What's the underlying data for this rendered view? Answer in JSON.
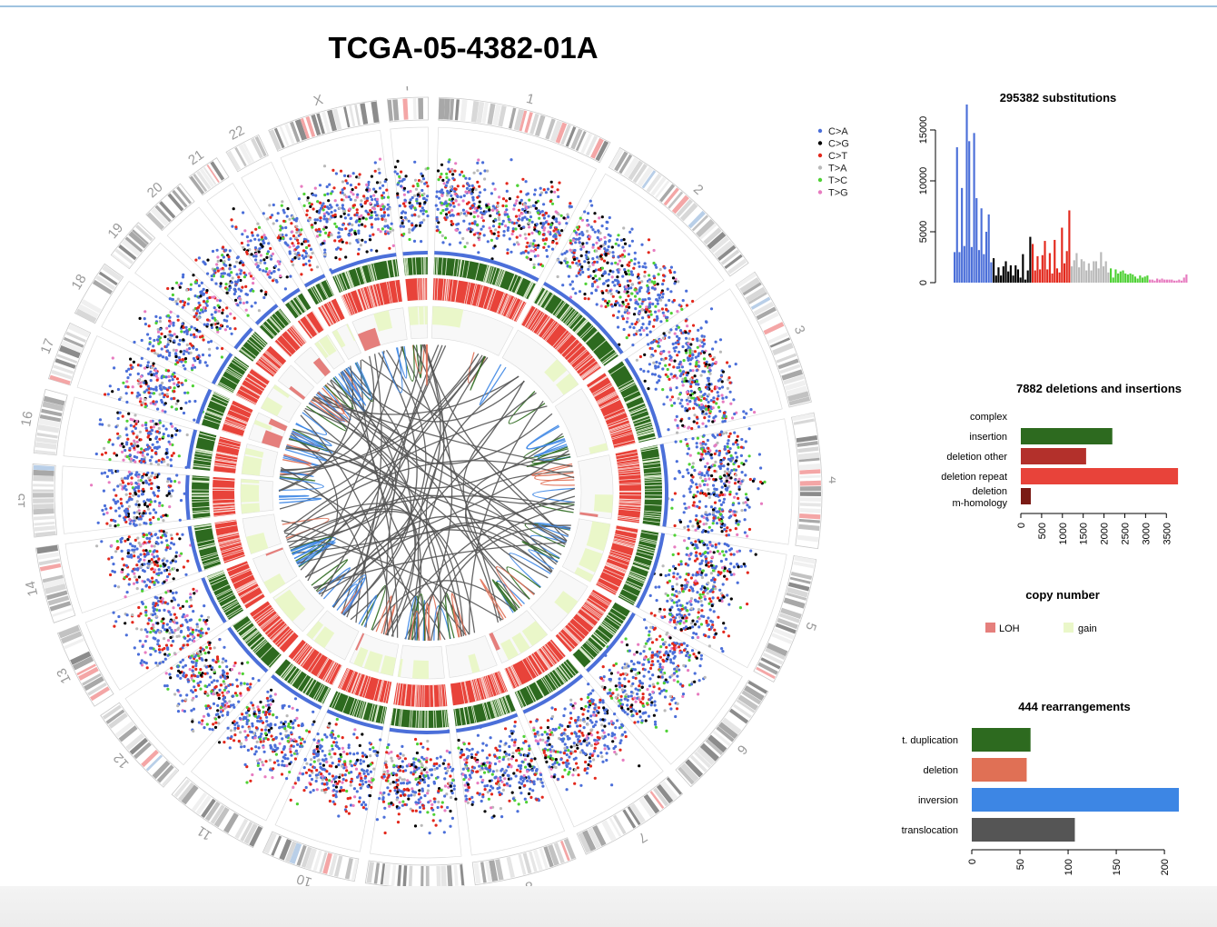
{
  "title": "TCGA-05-4382-01A",
  "colors": {
    "C>A": "#4b6fd9",
    "C>G": "#000000",
    "C>T": "#e3281c",
    "T>A": "#b9b9b9",
    "T>C": "#4fd135",
    "T>G": "#e77cc0",
    "insertion": "#2d6a1f",
    "deletion_other": "#b3302b",
    "deletion_repeat": "#e8433a",
    "deletion_mh": "#7a1a14",
    "LOH": "#e57f7c",
    "gain": "#eaf7c9",
    "t_duplication": "#2d6a1f",
    "sv_deletion": "#e07055",
    "inversion": "#3d86e4",
    "translocation": "#555555"
  },
  "circos": {
    "chromosomes": [
      "1",
      "2",
      "3",
      "4",
      "5",
      "6",
      "7",
      "8",
      "9",
      "10",
      "11",
      "12",
      "13",
      "14",
      "15",
      "16",
      "17",
      "18",
      "19",
      "20",
      "21",
      "22",
      "X",
      "Y"
    ]
  },
  "chart_data": [
    {
      "type": "bar",
      "title": "295382 substitutions",
      "ylim": [
        0,
        17500
      ],
      "yticks": [
        0,
        5000,
        10000,
        15000
      ],
      "legend": [
        "C>A",
        "C>G",
        "C>T",
        "T>A",
        "T>C",
        "T>G"
      ],
      "series": [
        {
          "name": "C>A",
          "values": [
            3000,
            13300,
            3000,
            9300,
            3600,
            17500,
            13900,
            3500,
            14700,
            8300,
            3200,
            7300,
            2800,
            5000,
            6700,
            2000
          ]
        },
        {
          "name": "C>G",
          "values": [
            2400,
            700,
            1500,
            700,
            1600,
            2100,
            1100,
            1700,
            700,
            1700,
            1300,
            500,
            2800,
            300,
            1200,
            4500
          ]
        },
        {
          "name": "C>T",
          "values": [
            3800,
            1200,
            2600,
            1300,
            2700,
            4100,
            1300,
            2900,
            900,
            4200,
            1400,
            1000,
            5400,
            1900,
            3100,
            7100
          ]
        },
        {
          "name": "T>A",
          "values": [
            1600,
            2200,
            2900,
            1500,
            2300,
            2100,
            1200,
            1900,
            1200,
            2100,
            2100,
            1400,
            3000,
            1600,
            2100,
            1000
          ]
        },
        {
          "name": "T>C",
          "values": [
            1400,
            500,
            1300,
            900,
            1100,
            1200,
            900,
            800,
            900,
            800,
            600,
            400,
            700,
            500,
            600,
            700
          ]
        },
        {
          "name": "T>G",
          "values": [
            300,
            300,
            200,
            400,
            300,
            400,
            300,
            300,
            300,
            300,
            200,
            200,
            300,
            200,
            500,
            800
          ]
        }
      ]
    },
    {
      "type": "bar",
      "orientation": "horizontal",
      "title": "7882 deletions and insertions",
      "categories": [
        "complex",
        "insertion",
        "deletion other",
        "deletion repeat",
        "deletion\nm-homology"
      ],
      "values": [
        0,
        2200,
        1570,
        3780,
        240
      ],
      "xlim": [
        0,
        3800
      ],
      "xticks": [
        0,
        500,
        1000,
        1500,
        2000,
        2500,
        3000,
        3500
      ]
    },
    {
      "type": "legend",
      "title": "copy number",
      "entries": [
        "LOH",
        "gain"
      ]
    },
    {
      "type": "bar",
      "orientation": "horizontal",
      "title": "444 rearrangements",
      "categories": [
        "t. duplication",
        "deletion",
        "inversion",
        "translocation"
      ],
      "values": [
        61,
        57,
        215,
        107
      ],
      "xlim": [
        0,
        215
      ],
      "xticks": [
        0,
        50,
        100,
        150,
        200
      ]
    }
  ]
}
